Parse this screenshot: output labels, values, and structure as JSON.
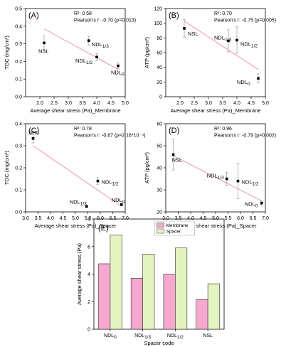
{
  "chart_data": [
    {
      "id": "A",
      "type": "scatter",
      "panel_label": "(A)",
      "xlabel": "Average shear stress (Pa)_Membrane",
      "ylabel": "TOC (mg/cm²)",
      "xlim": [
        1.5,
        5.0
      ],
      "ylim": [
        0.0,
        0.5
      ],
      "xticks": [
        "2.0",
        "2.5",
        "3.0",
        "3.5",
        "4.0",
        "4.5",
        "5.0"
      ],
      "yticks": [
        "0.0",
        "0.1",
        "0.2",
        "0.3",
        "0.4",
        "0.5"
      ],
      "stats": [
        "R²: 0.58",
        "Pearson's r: -0.70 (p=0.013)"
      ],
      "points": [
        {
          "label": "NSL",
          "x": 2.15,
          "y": 0.305,
          "err": 0.04
        },
        {
          "label": "NDL1/3",
          "x": 3.72,
          "y": 0.318,
          "err": 0.025
        },
        {
          "label": "NDL1/2",
          "x": 4.0,
          "y": 0.225,
          "err": 0.02
        },
        {
          "label": "NDL0",
          "x": 4.75,
          "y": 0.175,
          "err": 0.015
        }
      ],
      "fit": {
        "x": [
          2.15,
          4.75
        ],
        "y": [
          0.385,
          0.155
        ]
      }
    },
    {
      "id": "B",
      "type": "scatter",
      "panel_label": "(B)",
      "xlabel": "Average shear stress (Pa)_Membrane",
      "ylabel": "ATP (pg/cm²)",
      "xlim": [
        1.5,
        5.0
      ],
      "ylim": [
        0,
        120
      ],
      "xticks": [
        "2.0",
        "2.5",
        "3.0",
        "3.5",
        "4.0",
        "4.5",
        "5.0"
      ],
      "yticks": [
        "0",
        "20",
        "40",
        "60",
        "80",
        "100",
        "120"
      ],
      "stats": [
        "R²: 0.70",
        "Pearson's r: -0.75 (p=0.005)"
      ],
      "points": [
        {
          "label": "NSL",
          "x": 2.15,
          "y": 93,
          "err": 12
        },
        {
          "label": "NDL1/3",
          "x": 3.7,
          "y": 76,
          "err": 15
        },
        {
          "label": "NDL1/2",
          "x": 4.0,
          "y": 77,
          "err": 18
        },
        {
          "label": "NDL0",
          "x": 4.75,
          "y": 25,
          "err": 6
        }
      ],
      "fit": {
        "x": [
          2.15,
          4.75
        ],
        "y": [
          103,
          37
        ]
      }
    },
    {
      "id": "C",
      "type": "scatter",
      "panel_label": "(C)",
      "xlabel": "Average shear stress (Pa)_Spacer",
      "ylabel": "TOC (mg/cm²)",
      "xlim": [
        3.0,
        7.0
      ],
      "ylim": [
        0.0,
        0.4
      ],
      "xticks": [
        "3.0",
        "3.5",
        "4.0",
        "4.5",
        "5.0",
        "5.5",
        "6.0",
        "6.5",
        "7.0"
      ],
      "yticks": [
        "0.0",
        "0.1",
        "0.2",
        "0.3",
        "0.4"
      ],
      "stats": [
        "R²: 0.78",
        "Pearson's r: -0.87 (p=2.16*10⁻⁴)"
      ],
      "points": [
        {
          "label": "NSL",
          "x": 3.3,
          "y": 0.333,
          "err": 0.02
        },
        {
          "label": "NDL1/2",
          "x": 5.9,
          "y": 0.14,
          "err": 0.015
        },
        {
          "label": "NDL1/3",
          "x": 5.45,
          "y": 0.025,
          "err": 0.005
        },
        {
          "label": "NDL0",
          "x": 6.85,
          "y": 0.033,
          "err": 0.005
        }
      ],
      "fit": {
        "x": [
          3.3,
          6.85
        ],
        "y": [
          0.3,
          0.025
        ]
      }
    },
    {
      "id": "D",
      "type": "scatter",
      "panel_label": "(D)",
      "xlabel": "Average shear stress (Pa)_Spacer",
      "ylabel": "ATP (pg/cm²)",
      "xlim": [
        3.0,
        7.0
      ],
      "ylim": [
        20,
        60
      ],
      "xticks": [
        "3.0",
        "3.5",
        "4.0",
        "4.5",
        "5.0",
        "5.5",
        "6.0",
        "6.5",
        "7.0"
      ],
      "yticks": [
        "20",
        "30",
        "40",
        "50",
        "60"
      ],
      "stats": [
        "R²: 0.96",
        "Pearson's r: -0.79 (p=0.002)"
      ],
      "points": [
        {
          "label": "NSL",
          "x": 3.3,
          "y": 46,
          "err": 7
        },
        {
          "label": "NDL1/3",
          "x": 5.45,
          "y": 35,
          "err": 3
        },
        {
          "label": "NDL1/2",
          "x": 5.9,
          "y": 34,
          "err": 8
        },
        {
          "label": "NDL0",
          "x": 6.85,
          "y": 24,
          "err": 1
        }
      ],
      "fit": {
        "x": [
          3.3,
          6.85
        ],
        "y": [
          45.5,
          25
        ]
      }
    },
    {
      "id": "E",
      "type": "bar",
      "panel_label": "(E)",
      "xlabel": "Spacer code",
      "ylabel": "Average shear stress (Pa)",
      "ylim": [
        0,
        8
      ],
      "yticks": [
        "0",
        "2",
        "4",
        "6",
        "8"
      ],
      "categories": [
        "NDL0",
        "NDL1/3",
        "NDL1/2",
        "NSL"
      ],
      "series": [
        {
          "name": "Membrane",
          "color": "#f7a8cf",
          "values": [
            4.75,
            3.7,
            4.0,
            2.15
          ]
        },
        {
          "name": "Spacer",
          "color": "#e4f3bf",
          "values": [
            6.85,
            5.45,
            5.9,
            3.3
          ]
        }
      ],
      "legend": "top"
    }
  ],
  "colors": {
    "fit_line": "#f08a9c",
    "axis": "#000000",
    "point": "#000000",
    "error_bar": "#888888"
  }
}
